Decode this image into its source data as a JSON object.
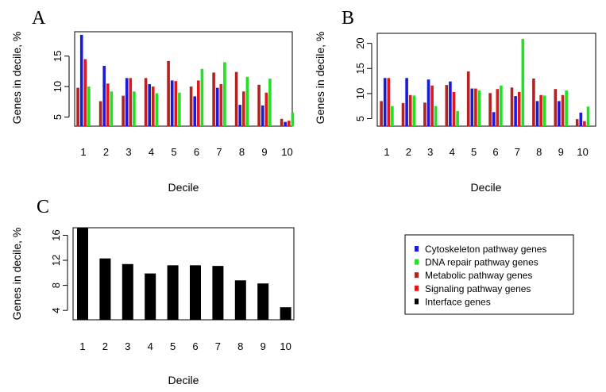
{
  "legend": {
    "entries": [
      {
        "label": "Cytoskeleton pathway genes",
        "color": "#1a1adb"
      },
      {
        "label": "DNA repair pathway genes",
        "color": "#22e022"
      },
      {
        "label": "Metabolic pathway genes",
        "color": "#b22222"
      },
      {
        "label": "Signaling pathway genes",
        "color": "#e01818"
      },
      {
        "label": "Interface genes",
        "color": "#000000"
      }
    ]
  },
  "chart_data": [
    {
      "panel": "A",
      "type": "bar",
      "xlabel": "Decile",
      "ylabel": "Genes in decile, %",
      "ylim": [
        3.5,
        19
      ],
      "yticks": [
        5,
        10,
        15
      ],
      "categories": [
        "1",
        "2",
        "3",
        "4",
        "5",
        "6",
        "7",
        "8",
        "9",
        "10"
      ],
      "series": [
        {
          "name": "Metabolic pathway genes",
          "color": "#b22222",
          "values": [
            9.8,
            7.6,
            8.5,
            11.4,
            14.2,
            10.0,
            12.3,
            12.4,
            10.3,
            4.7
          ]
        },
        {
          "name": "Cytoskeleton pathway genes",
          "color": "#1a1adb",
          "values": [
            18.5,
            13.4,
            11.4,
            10.4,
            11.0,
            8.4,
            9.8,
            7.0,
            6.9,
            4.2
          ]
        },
        {
          "name": "Signaling pathway genes",
          "color": "#e01818",
          "values": [
            14.5,
            10.5,
            11.4,
            10.0,
            10.9,
            11.0,
            10.4,
            9.2,
            9.0,
            4.4
          ]
        },
        {
          "name": "DNA repair pathway genes",
          "color": "#22e022",
          "values": [
            10.0,
            9.2,
            9.2,
            8.9,
            9.0,
            12.9,
            14.0,
            11.6,
            11.3,
            5.7
          ]
        }
      ]
    },
    {
      "panel": "B",
      "type": "bar",
      "xlabel": "Decile",
      "ylabel": "Genes in decile, %",
      "ylim": [
        3.5,
        22
      ],
      "yticks": [
        5,
        10,
        15,
        20
      ],
      "categories": [
        "1",
        "2",
        "3",
        "4",
        "5",
        "6",
        "7",
        "8",
        "9",
        "10"
      ],
      "series": [
        {
          "name": "Metabolic pathway genes",
          "color": "#b22222",
          "values": [
            8.5,
            8.1,
            8.2,
            11.7,
            14.4,
            10.1,
            11.2,
            13.0,
            10.9,
            4.9
          ]
        },
        {
          "name": "Cytoskeleton pathway genes",
          "color": "#1a1adb",
          "values": [
            13.1,
            13.1,
            12.8,
            12.4,
            11.0,
            6.3,
            9.5,
            8.5,
            8.5,
            6.2
          ]
        },
        {
          "name": "Signaling pathway genes",
          "color": "#e01818",
          "values": [
            13.1,
            9.7,
            11.6,
            10.3,
            11.0,
            10.9,
            10.3,
            9.7,
            9.7,
            4.5
          ]
        },
        {
          "name": "DNA repair pathway genes",
          "color": "#22e022",
          "values": [
            7.5,
            9.6,
            7.5,
            6.5,
            10.6,
            11.6,
            20.9,
            9.6,
            10.6,
            7.4
          ]
        }
      ]
    },
    {
      "panel": "C",
      "type": "bar",
      "xlabel": "Decile",
      "ylabel": "Genes in decile, %",
      "ylim": [
        2.5,
        17.2
      ],
      "yticks": [
        4,
        8,
        12,
        16
      ],
      "categories": [
        "1",
        "2",
        "3",
        "4",
        "5",
        "6",
        "7",
        "8",
        "9",
        "10"
      ],
      "series": [
        {
          "name": "Interface genes",
          "color": "#000000",
          "values": [
            17.2,
            12.3,
            11.4,
            9.9,
            11.2,
            11.2,
            11.1,
            8.8,
            8.3,
            4.5
          ]
        }
      ]
    }
  ]
}
